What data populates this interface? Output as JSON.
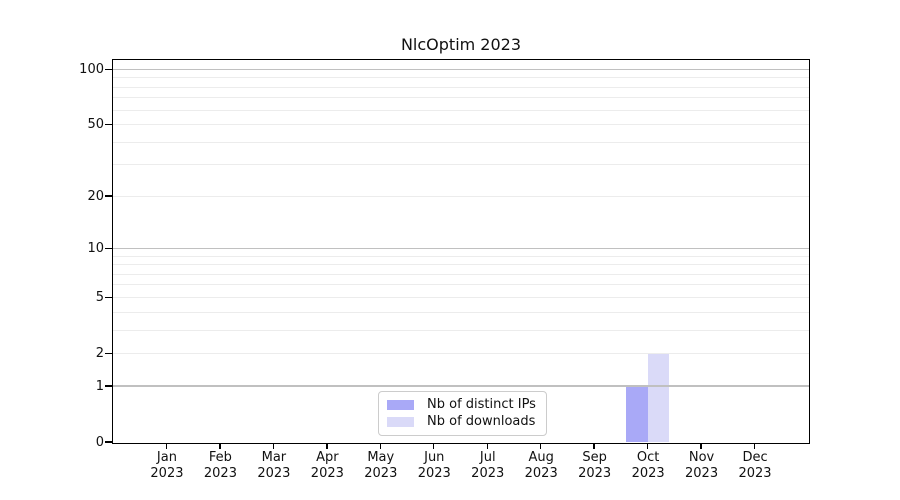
{
  "chart_data": {
    "type": "bar",
    "title": "NlcOptim 2023",
    "categories": [
      "Jan 2023",
      "Feb 2023",
      "Mar 2023",
      "Apr 2023",
      "May 2023",
      "Jun 2023",
      "Jul 2023",
      "Aug 2023",
      "Sep 2023",
      "Oct 2023",
      "Nov 2023",
      "Dec 2023"
    ],
    "series": [
      {
        "name": "Nb of distinct IPs",
        "color": "#a9a9f7",
        "values": [
          0,
          0,
          0,
          0,
          0,
          0,
          0,
          0,
          0,
          1,
          0,
          0
        ]
      },
      {
        "name": "Nb of downloads",
        "color": "#dadaf8",
        "values": [
          0,
          0,
          0,
          0,
          0,
          0,
          0,
          0,
          0,
          2,
          0,
          0
        ]
      }
    ],
    "xlabel": "",
    "ylabel": "",
    "yscale": "log1p",
    "ylim": [
      0,
      114
    ],
    "y_ticks": [
      0,
      1,
      2,
      5,
      10,
      20,
      50,
      100
    ],
    "y_major_gridlines": [
      1,
      10,
      100
    ],
    "y_minor_gridlines": [
      2,
      3,
      4,
      5,
      6,
      7,
      8,
      9,
      20,
      30,
      40,
      50,
      60,
      70,
      80,
      90
    ],
    "grid": "horizontal",
    "legend_position": "bottom-center",
    "colors": {
      "axis": "#000000",
      "major_grid": "#c0c0c0",
      "minor_grid": "#ececec",
      "text": "#111111",
      "background": "#ffffff"
    }
  }
}
